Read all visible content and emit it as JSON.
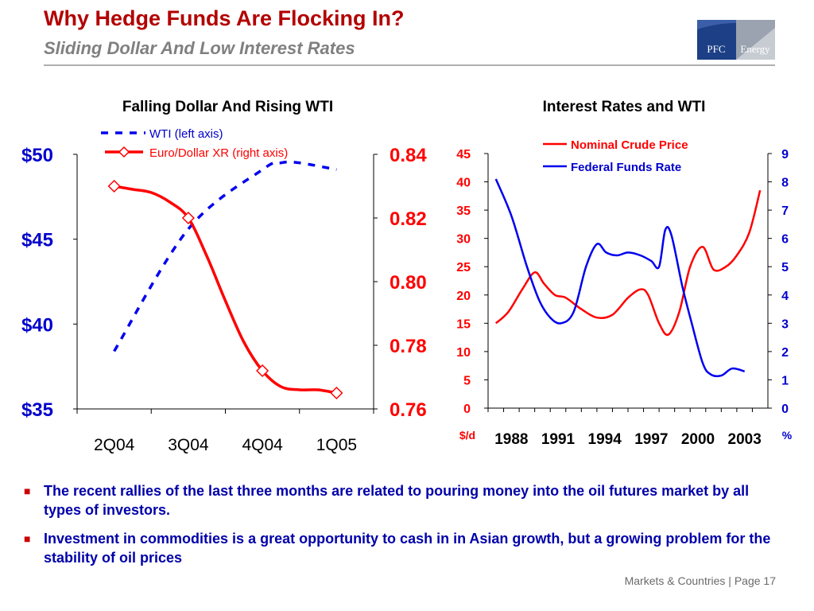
{
  "slide": {
    "title": "Why Hedge Funds Are Flocking In?",
    "subtitle": "Sliding Dollar And Low Interest Rates",
    "logo_text_left": "PFC",
    "logo_text_right": "Energy",
    "bullets": [
      "The recent rallies of the last three months are related to pouring money into the oil futures market by all types of investors.",
      "Investment in commodities is a great opportunity to cash in in Asian growth, but a growing problem for the stability of oil prices"
    ],
    "footer": "Markets & Countries  |  Page 17",
    "colors": {
      "title": "#b30000",
      "bullet_text": "#0000aa",
      "red_series": "#ff0000",
      "blue_series": "#0000ee"
    }
  },
  "chart_data": [
    {
      "type": "line",
      "title": "Falling Dollar And Rising WTI",
      "categories": [
        "2Q04",
        "3Q04",
        "4Q04",
        "1Q05"
      ],
      "left_axis": {
        "ticks": [
          "$35",
          "$40",
          "$45",
          "$50"
        ],
        "range": [
          35,
          50
        ]
      },
      "right_axis": {
        "ticks": [
          "0.76",
          "0.78",
          "0.80",
          "0.82",
          "0.84"
        ],
        "range": [
          0.76,
          0.84
        ]
      },
      "series": [
        {
          "name": "WTI (left axis)",
          "axis": "left",
          "style": "dashed",
          "color": "#0000ee",
          "x": [
            0,
            1,
            2,
            2.25,
            2.5,
            3
          ],
          "values": [
            38.4,
            45.6,
            49.1,
            49.5,
            49.5,
            49.1
          ]
        },
        {
          "name": "Euro/Dollar XR (right axis)",
          "axis": "right",
          "style": "solid-diamond",
          "color": "#ff0000",
          "x": [
            0,
            0.25,
            0.5,
            0.75,
            1,
            1.25,
            1.5,
            1.75,
            2,
            2.25,
            2.5,
            2.75,
            3
          ],
          "values": [
            0.83,
            0.829,
            0.828,
            0.825,
            0.82,
            0.808,
            0.794,
            0.781,
            0.772,
            0.767,
            0.766,
            0.766,
            0.765
          ],
          "markers_at": [
            0,
            1,
            2,
            3
          ]
        }
      ],
      "legend": "top"
    },
    {
      "type": "line",
      "title": "Interest Rates and WTI",
      "x_ticks": [
        "1988",
        "1991",
        "1994",
        "1997",
        "2000",
        "2003"
      ],
      "xlim": [
        1987,
        2005
      ],
      "left_axis": {
        "ticks": [
          "0",
          "5",
          "10",
          "15",
          "20",
          "25",
          "30",
          "35",
          "40",
          "45"
        ],
        "range": [
          0,
          45
        ],
        "unit": "$/d"
      },
      "right_axis": {
        "ticks": [
          "0",
          "1",
          "2",
          "3",
          "4",
          "5",
          "6",
          "7",
          "8",
          "9"
        ],
        "range": [
          0,
          9
        ],
        "unit": "%"
      },
      "series": [
        {
          "name": "Nominal Crude Price",
          "axis": "left",
          "color": "#ff0000",
          "x": [
            1987.5,
            1988.3,
            1989.2,
            1990.0,
            1990.6,
            1991.3,
            1992.0,
            1993.0,
            1994.0,
            1995.0,
            1996.0,
            1996.8,
            1997.3,
            1998.0,
            1998.6,
            1999.3,
            2000.0,
            2000.8,
            2001.5,
            2002.3,
            2003.0,
            2003.8,
            2004.5
          ],
          "values": [
            15,
            17,
            21,
            24,
            22,
            20,
            19.5,
            17.5,
            16,
            16.5,
            19.5,
            21,
            20,
            15,
            13,
            17,
            25,
            28.5,
            24.5,
            25,
            27,
            31,
            38.5
          ]
        },
        {
          "name": "Federal Funds Rate",
          "axis": "right",
          "color": "#0000ee",
          "x": [
            1987.5,
            1988.5,
            1989.5,
            1990.3,
            1991.0,
            1991.7,
            1992.5,
            1993.3,
            1994.0,
            1994.6,
            1995.3,
            1996.0,
            1996.8,
            1997.5,
            1998.0,
            1998.4,
            1998.8,
            1999.5,
            2000.1,
            2000.8,
            2001.3,
            2002.0,
            2002.7,
            2003.5
          ],
          "values": [
            8.1,
            6.8,
            5.0,
            3.8,
            3.2,
            3.0,
            3.4,
            5.0,
            5.8,
            5.5,
            5.4,
            5.5,
            5.4,
            5.2,
            5.0,
            6.3,
            6.1,
            4.3,
            3.0,
            1.6,
            1.2,
            1.15,
            1.4,
            1.3
          ]
        }
      ],
      "legend": "top"
    }
  ]
}
